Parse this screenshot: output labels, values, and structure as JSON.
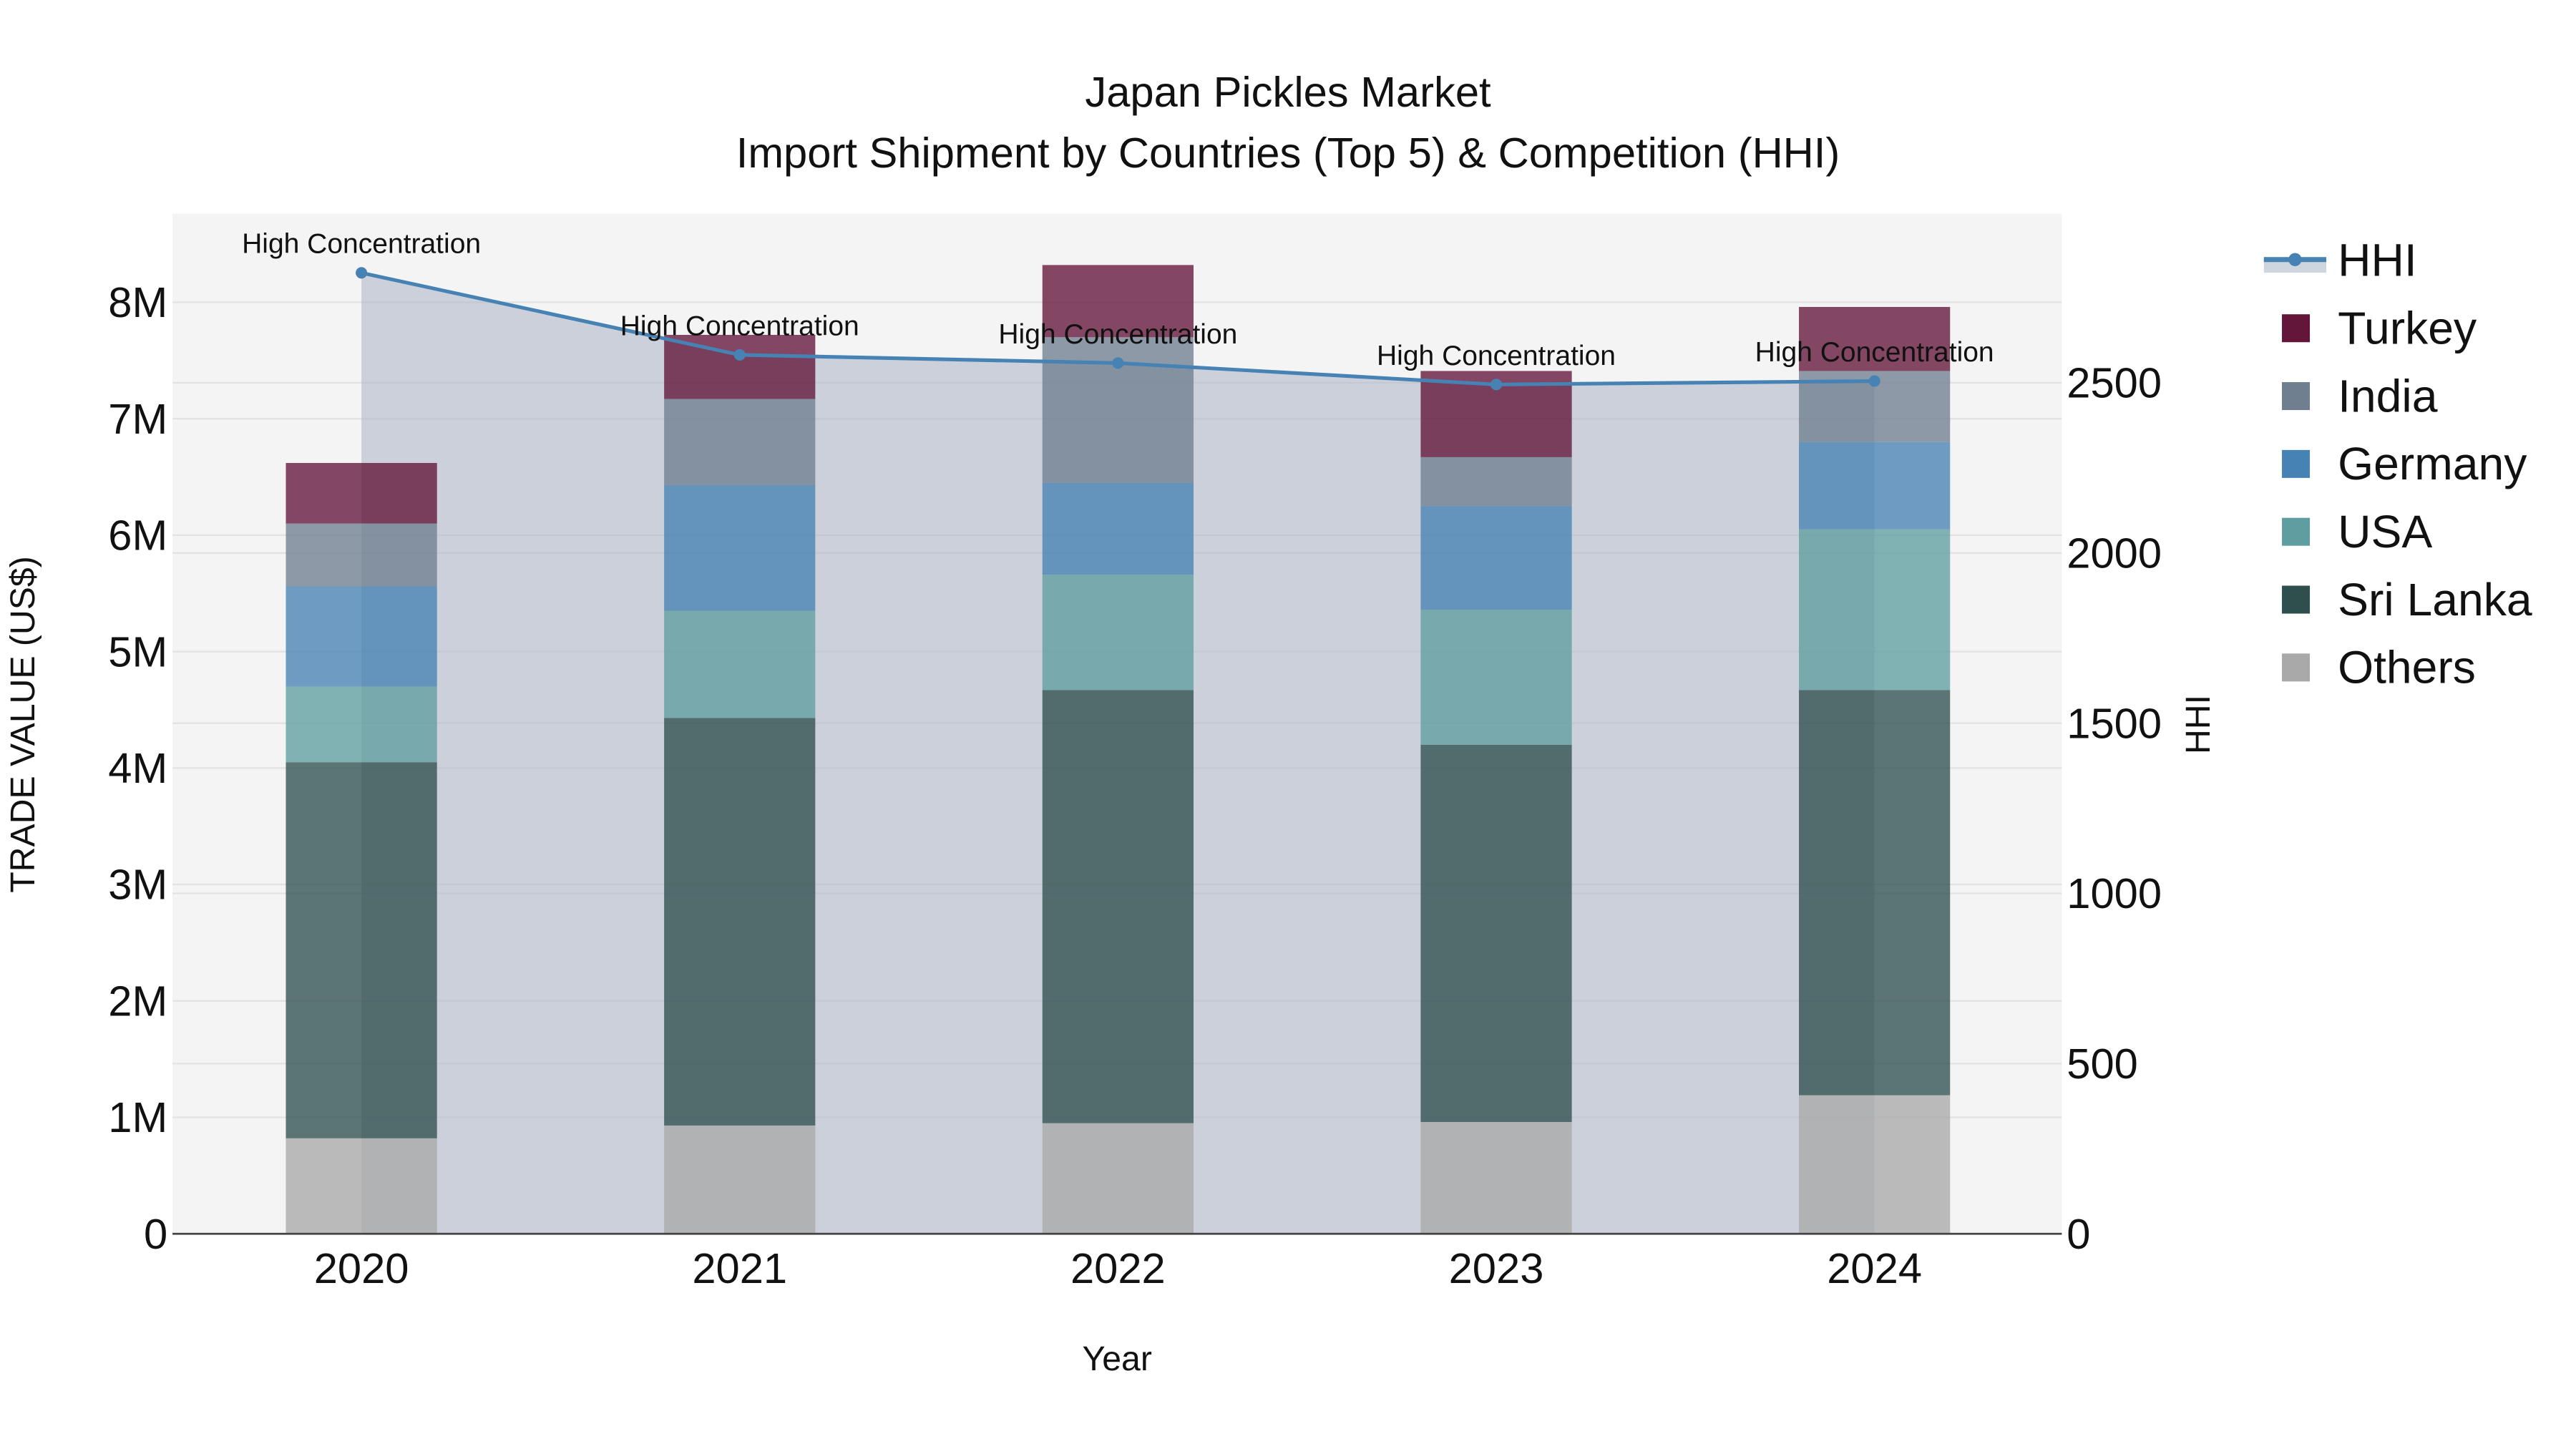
{
  "title": {
    "line1": "Japan Pickles Market",
    "line2": "Import Shipment by Countries (Top 5) & Competition (HHI)"
  },
  "axes": {
    "x_label": "Year",
    "y_left_label": "TRADE VALUE (US$)",
    "y_right_label": "HHI",
    "y_left_ticks": [
      "0",
      "1M",
      "2M",
      "3M",
      "4M",
      "5M",
      "6M",
      "7M",
      "8M"
    ],
    "y_right_ticks": [
      "0",
      "500",
      "1000",
      "1500",
      "2000",
      "2500"
    ]
  },
  "legend": {
    "items": [
      {
        "label": "HHI",
        "color": "#4682b4",
        "kind": "line"
      },
      {
        "label": "Turkey",
        "color": "#63153a",
        "kind": "box"
      },
      {
        "label": "India",
        "color": "#6f7f8f",
        "kind": "box"
      },
      {
        "label": "Germany",
        "color": "#4682b4",
        "kind": "box"
      },
      {
        "label": "USA",
        "color": "#5f9ea0",
        "kind": "box"
      },
      {
        "label": "Sri Lanka",
        "color": "#2f4f4f",
        "kind": "box"
      },
      {
        "label": "Others",
        "color": "#a9a9a9",
        "kind": "box"
      }
    ]
  },
  "annotation_text": "High Concentration",
  "chart_data": {
    "type": "bar",
    "subtype": "stacked bar with line overlay (secondary axis)",
    "title": "Japan Pickles Market — Import Shipment by Countries (Top 5) & Competition (HHI)",
    "xlabel": "Year",
    "ylabel": "TRADE VALUE (US$)",
    "y2label": "HHI",
    "categories": [
      "2020",
      "2021",
      "2022",
      "2023",
      "2024"
    ],
    "ylim": [
      0,
      8700000
    ],
    "y2lim": [
      0,
      2990
    ],
    "series": [
      {
        "name": "Others",
        "color": "#a9a9a9",
        "values": [
          820000,
          930000,
          950000,
          960000,
          1190000
        ]
      },
      {
        "name": "Sri Lanka",
        "color": "#2f4f4f",
        "values": [
          3230000,
          3500000,
          3720000,
          3240000,
          3480000
        ]
      },
      {
        "name": "USA",
        "color": "#5f9ea0",
        "values": [
          650000,
          920000,
          990000,
          1160000,
          1380000
        ]
      },
      {
        "name": "Germany",
        "color": "#4682b4",
        "values": [
          860000,
          1080000,
          790000,
          890000,
          750000
        ]
      },
      {
        "name": "India",
        "color": "#6f7f8f",
        "values": [
          540000,
          740000,
          1250000,
          420000,
          610000
        ]
      },
      {
        "name": "Turkey",
        "color": "#63153a",
        "values": [
          520000,
          550000,
          620000,
          740000,
          550000
        ]
      }
    ],
    "line_series": {
      "name": "HHI",
      "axis": "right",
      "color": "#4682b4",
      "values": [
        2823,
        2582,
        2558,
        2495,
        2505
      ],
      "labels": [
        "High Concentration",
        "High Concentration",
        "High Concentration",
        "High Concentration",
        "High Concentration"
      ]
    },
    "legend_position": "right",
    "grid": true
  }
}
